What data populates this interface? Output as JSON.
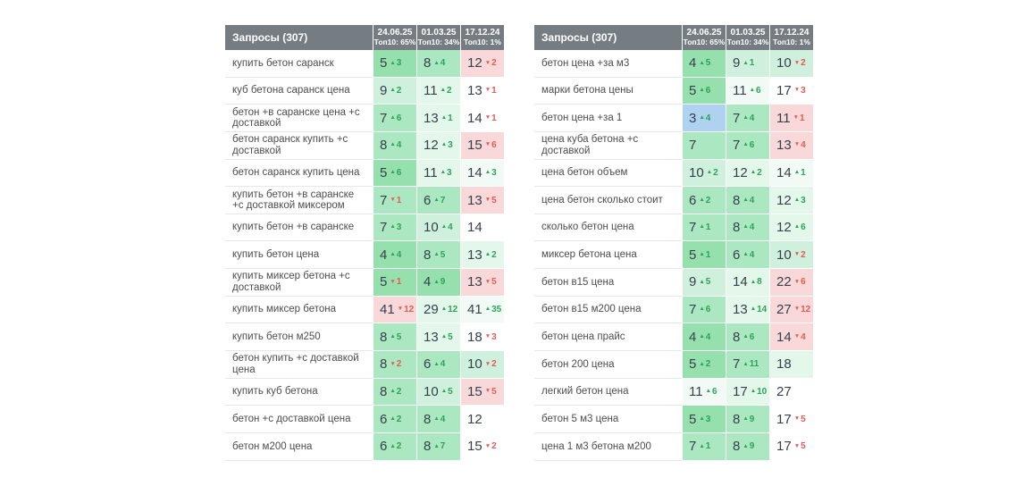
{
  "glyphs": {
    "up_arrow": "▲",
    "down_arrow": "▼"
  },
  "colors": {
    "header_bg": "#757d83",
    "header_text": "#ffffff",
    "value_text": "#36414d",
    "delta_up": "#2aa558",
    "delta_down": "#e45b52",
    "tone_blue": "#aed2f0",
    "tone_g1": "#96e0ad",
    "tone_g2": "#abe7c0",
    "tone_g3": "#cff0dc",
    "tone_g4": "#e4f7eb",
    "tone_g5": "#f2faf5",
    "tone_pink": "#f8d8d8"
  },
  "tables": [
    {
      "title": "Запросы (307)",
      "columns": [
        {
          "date": "24.06.25",
          "top10": "Топ10: 65%"
        },
        {
          "date": "01.03.25",
          "top10": "Топ10: 34%"
        },
        {
          "date": "17.12.24",
          "top10": "Топ10: 1%"
        }
      ],
      "rows": [
        {
          "query": "купить бетон саранск",
          "cells": [
            {
              "value": 5,
              "delta": 3,
              "dir": "up",
              "tone": "g1"
            },
            {
              "value": 8,
              "delta": 4,
              "dir": "up",
              "tone": "g2"
            },
            {
              "value": 12,
              "delta": 2,
              "dir": "down",
              "tone": "pink"
            }
          ]
        },
        {
          "query": "куб бетона саранск цена",
          "cells": [
            {
              "value": 9,
              "delta": 2,
              "dir": "up",
              "tone": "g3"
            },
            {
              "value": 11,
              "delta": 2,
              "dir": "up",
              "tone": "g4"
            },
            {
              "value": 13,
              "delta": 1,
              "dir": "down",
              "tone": "white"
            }
          ]
        },
        {
          "query": "бетон +в саранске цена +с доставкой",
          "cells": [
            {
              "value": 7,
              "delta": 6,
              "dir": "up",
              "tone": "g2"
            },
            {
              "value": 13,
              "delta": 1,
              "dir": "up",
              "tone": "g4"
            },
            {
              "value": 14,
              "delta": 1,
              "dir": "down",
              "tone": "white"
            }
          ]
        },
        {
          "query": "бетон саранск купить +с доставкой",
          "cells": [
            {
              "value": 8,
              "delta": 4,
              "dir": "up",
              "tone": "g2"
            },
            {
              "value": 12,
              "delta": 3,
              "dir": "up",
              "tone": "g4"
            },
            {
              "value": 15,
              "delta": 6,
              "dir": "down",
              "tone": "pink"
            }
          ]
        },
        {
          "query": "бетон саранск купить цена",
          "cells": [
            {
              "value": 5,
              "delta": 6,
              "dir": "up",
              "tone": "g1"
            },
            {
              "value": 11,
              "delta": 3,
              "dir": "up",
              "tone": "g4"
            },
            {
              "value": 14,
              "delta": 3,
              "dir": "up",
              "tone": "g5"
            }
          ]
        },
        {
          "query": "купить бетон +в саранске +с доставкой миксером",
          "cells": [
            {
              "value": 7,
              "delta": 1,
              "dir": "down",
              "tone": "g2"
            },
            {
              "value": 6,
              "delta": 7,
              "dir": "up",
              "tone": "g2"
            },
            {
              "value": 13,
              "delta": 5,
              "dir": "down",
              "tone": "pink"
            }
          ]
        },
        {
          "query": "купить бетон +в саранске",
          "cells": [
            {
              "value": 7,
              "delta": 3,
              "dir": "up",
              "tone": "g2"
            },
            {
              "value": 10,
              "delta": 4,
              "dir": "up",
              "tone": "g3"
            },
            {
              "value": 14,
              "delta": null,
              "dir": null,
              "tone": "white"
            }
          ]
        },
        {
          "query": "купить бетон цена",
          "cells": [
            {
              "value": 4,
              "delta": 4,
              "dir": "up",
              "tone": "g1"
            },
            {
              "value": 8,
              "delta": 5,
              "dir": "up",
              "tone": "g2"
            },
            {
              "value": 13,
              "delta": 2,
              "dir": "up",
              "tone": "g4"
            }
          ]
        },
        {
          "query": "купить миксер бетона +с доставкой",
          "cells": [
            {
              "value": 5,
              "delta": 1,
              "dir": "down",
              "tone": "g1"
            },
            {
              "value": 4,
              "delta": 9,
              "dir": "up",
              "tone": "g1"
            },
            {
              "value": 13,
              "delta": 5,
              "dir": "down",
              "tone": "pink"
            }
          ]
        },
        {
          "query": "купить миксер бетона",
          "cells": [
            {
              "value": 41,
              "delta": 12,
              "dir": "down",
              "tone": "pink"
            },
            {
              "value": 29,
              "delta": 12,
              "dir": "up",
              "tone": "g4"
            },
            {
              "value": 41,
              "delta": 35,
              "dir": "up",
              "tone": "g5"
            }
          ]
        },
        {
          "query": "купить бетон м250",
          "cells": [
            {
              "value": 8,
              "delta": 5,
              "dir": "up",
              "tone": "g2"
            },
            {
              "value": 13,
              "delta": 5,
              "dir": "up",
              "tone": "g4"
            },
            {
              "value": 18,
              "delta": 3,
              "dir": "down",
              "tone": "white"
            }
          ]
        },
        {
          "query": "бетон купить +с доставкой цена",
          "cells": [
            {
              "value": 8,
              "delta": 2,
              "dir": "down",
              "tone": "g2"
            },
            {
              "value": 6,
              "delta": 4,
              "dir": "up",
              "tone": "g2"
            },
            {
              "value": 10,
              "delta": 2,
              "dir": "down",
              "tone": "g3"
            }
          ]
        },
        {
          "query": "купить куб бетона",
          "cells": [
            {
              "value": 8,
              "delta": 2,
              "dir": "up",
              "tone": "g2"
            },
            {
              "value": 10,
              "delta": 5,
              "dir": "up",
              "tone": "g3"
            },
            {
              "value": 15,
              "delta": 5,
              "dir": "down",
              "tone": "pink"
            }
          ]
        },
        {
          "query": "бетон +с доставкой цена",
          "cells": [
            {
              "value": 6,
              "delta": 2,
              "dir": "up",
              "tone": "g2"
            },
            {
              "value": 8,
              "delta": 4,
              "dir": "up",
              "tone": "g2"
            },
            {
              "value": 12,
              "delta": null,
              "dir": null,
              "tone": "white"
            }
          ]
        },
        {
          "query": "бетон м200 цена",
          "cells": [
            {
              "value": 6,
              "delta": 2,
              "dir": "up",
              "tone": "g2"
            },
            {
              "value": 8,
              "delta": 7,
              "dir": "up",
              "tone": "g2"
            },
            {
              "value": 15,
              "delta": 2,
              "dir": "down",
              "tone": "white"
            }
          ]
        }
      ]
    },
    {
      "title": "Запросы (307)",
      "columns": [
        {
          "date": "24.06.25",
          "top10": "Топ10: 65%"
        },
        {
          "date": "01.03.25",
          "top10": "Топ10: 34%"
        },
        {
          "date": "17.12.24",
          "top10": "Топ10: 1%"
        }
      ],
      "rows": [
        {
          "query": "бетон цена +за м3",
          "cells": [
            {
              "value": 4,
              "delta": 5,
              "dir": "up",
              "tone": "g1"
            },
            {
              "value": 9,
              "delta": 1,
              "dir": "up",
              "tone": "g3"
            },
            {
              "value": 10,
              "delta": 2,
              "dir": "down",
              "tone": "g3"
            }
          ]
        },
        {
          "query": "марки бетона цены",
          "cells": [
            {
              "value": 5,
              "delta": 6,
              "dir": "up",
              "tone": "g1"
            },
            {
              "value": 11,
              "delta": 6,
              "dir": "up",
              "tone": "g5"
            },
            {
              "value": 17,
              "delta": 3,
              "dir": "down",
              "tone": "white"
            }
          ]
        },
        {
          "query": "бетон цена +за 1",
          "cells": [
            {
              "value": 3,
              "delta": 4,
              "dir": "up",
              "tone": "blue"
            },
            {
              "value": 7,
              "delta": 4,
              "dir": "up",
              "tone": "g2"
            },
            {
              "value": 11,
              "delta": 1,
              "dir": "down",
              "tone": "pink"
            }
          ]
        },
        {
          "query": "цена куба бетона +с доставкой",
          "cells": [
            {
              "value": 7,
              "delta": null,
              "dir": null,
              "tone": "g2"
            },
            {
              "value": 7,
              "delta": 6,
              "dir": "up",
              "tone": "g2"
            },
            {
              "value": 13,
              "delta": 4,
              "dir": "down",
              "tone": "pink"
            }
          ]
        },
        {
          "query": "цена бетон объем",
          "cells": [
            {
              "value": 10,
              "delta": 2,
              "dir": "up",
              "tone": "g3"
            },
            {
              "value": 12,
              "delta": 2,
              "dir": "up",
              "tone": "g4"
            },
            {
              "value": 14,
              "delta": 1,
              "dir": "up",
              "tone": "g5"
            }
          ]
        },
        {
          "query": "цена бетон сколько стоит",
          "cells": [
            {
              "value": 6,
              "delta": 2,
              "dir": "up",
              "tone": "g2"
            },
            {
              "value": 8,
              "delta": 4,
              "dir": "up",
              "tone": "g2"
            },
            {
              "value": 12,
              "delta": 3,
              "dir": "up",
              "tone": "g4"
            }
          ]
        },
        {
          "query": "сколько бетон цена",
          "cells": [
            {
              "value": 7,
              "delta": 1,
              "dir": "up",
              "tone": "g2"
            },
            {
              "value": 8,
              "delta": 4,
              "dir": "up",
              "tone": "g2"
            },
            {
              "value": 12,
              "delta": 6,
              "dir": "up",
              "tone": "g4"
            }
          ]
        },
        {
          "query": "миксер бетона цена",
          "cells": [
            {
              "value": 5,
              "delta": 1,
              "dir": "up",
              "tone": "g1"
            },
            {
              "value": 6,
              "delta": 4,
              "dir": "up",
              "tone": "g2"
            },
            {
              "value": 10,
              "delta": 2,
              "dir": "down",
              "tone": "g3"
            }
          ]
        },
        {
          "query": "бетон в15 цена",
          "cells": [
            {
              "value": 9,
              "delta": 5,
              "dir": "up",
              "tone": "g3"
            },
            {
              "value": 14,
              "delta": 8,
              "dir": "up",
              "tone": "g4"
            },
            {
              "value": 22,
              "delta": 6,
              "dir": "down",
              "tone": "pink"
            }
          ]
        },
        {
          "query": "бетон в15 м200 цена",
          "cells": [
            {
              "value": 7,
              "delta": 6,
              "dir": "up",
              "tone": "g2"
            },
            {
              "value": 13,
              "delta": 14,
              "dir": "up",
              "tone": "g4"
            },
            {
              "value": 27,
              "delta": 12,
              "dir": "down",
              "tone": "pink"
            }
          ]
        },
        {
          "query": "бетон цена прайс",
          "cells": [
            {
              "value": 4,
              "delta": 4,
              "dir": "up",
              "tone": "g1"
            },
            {
              "value": 8,
              "delta": 6,
              "dir": "up",
              "tone": "g2"
            },
            {
              "value": 14,
              "delta": 4,
              "dir": "down",
              "tone": "pink"
            }
          ]
        },
        {
          "query": "бетон 200 цена",
          "cells": [
            {
              "value": 5,
              "delta": 2,
              "dir": "up",
              "tone": "g1"
            },
            {
              "value": 7,
              "delta": 11,
              "dir": "up",
              "tone": "g2"
            },
            {
              "value": 18,
              "delta": null,
              "dir": null,
              "tone": "g4"
            }
          ]
        },
        {
          "query": "легкий бетон цена",
          "cells": [
            {
              "value": 11,
              "delta": 6,
              "dir": "up",
              "tone": "g5"
            },
            {
              "value": 17,
              "delta": 10,
              "dir": "up",
              "tone": "g4"
            },
            {
              "value": 27,
              "delta": null,
              "dir": null,
              "tone": "white"
            }
          ]
        },
        {
          "query": "бетон 5 м3 цена",
          "cells": [
            {
              "value": 5,
              "delta": 3,
              "dir": "up",
              "tone": "g1"
            },
            {
              "value": 8,
              "delta": 9,
              "dir": "up",
              "tone": "g2"
            },
            {
              "value": 17,
              "delta": 5,
              "dir": "down",
              "tone": "white"
            }
          ]
        },
        {
          "query": "цена 1 м3 бетона м200",
          "cells": [
            {
              "value": 7,
              "delta": 1,
              "dir": "up",
              "tone": "g2"
            },
            {
              "value": 8,
              "delta": 9,
              "dir": "up",
              "tone": "g2"
            },
            {
              "value": 17,
              "delta": 5,
              "dir": "down",
              "tone": "white"
            }
          ]
        }
      ]
    }
  ]
}
